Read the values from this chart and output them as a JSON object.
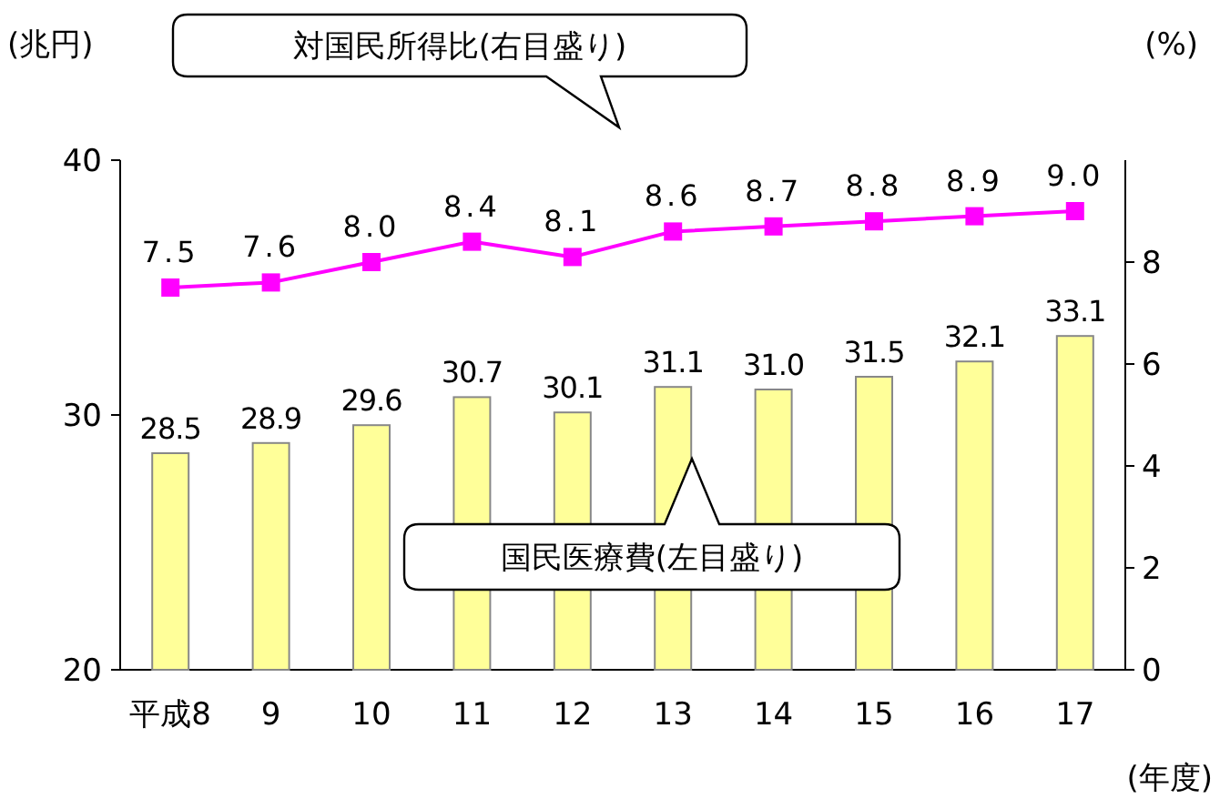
{
  "chart_data": {
    "type": "bar",
    "categories": [
      "平成8",
      "9",
      "10",
      "11",
      "12",
      "13",
      "14",
      "15",
      "16",
      "17"
    ],
    "xlabel": "(年度)",
    "ylabel": "(兆円)",
    "y2label": "(%)",
    "ylim": [
      20,
      40
    ],
    "yticks": [
      20,
      30,
      40
    ],
    "y2lim": [
      0,
      10
    ],
    "y2ticks": [
      0,
      2,
      4,
      6,
      8
    ],
    "grid": false,
    "marker": "square",
    "line_style": "solid",
    "annotations": [
      "対国民所得比(右目盛り)",
      "国民医療費(左目盛り)"
    ],
    "series": [
      {
        "color": "#ffff99",
        "values": [
          28.5,
          28.9,
          29.6,
          30.7,
          30.1,
          31.1,
          31.0,
          31.5,
          32.1,
          33.1
        ],
        "value_labels": [
          "28.5",
          "28.9",
          "29.6",
          "30.7",
          "30.1",
          "31.1",
          "31.0",
          "31.5",
          "32.1",
          "33.1"
        ]
      },
      {
        "type": "line",
        "axis": "y2",
        "color": "#ff00ff",
        "values": [
          7.5,
          7.6,
          8.0,
          8.4,
          8.1,
          8.6,
          8.7,
          8.8,
          8.9,
          9.0
        ],
        "value_labels": [
          "7.5",
          "7.6",
          "8.0",
          "8.4",
          "8.1",
          "8.6",
          "8.7",
          "8.8",
          "8.9",
          "9.0"
        ]
      }
    ]
  }
}
